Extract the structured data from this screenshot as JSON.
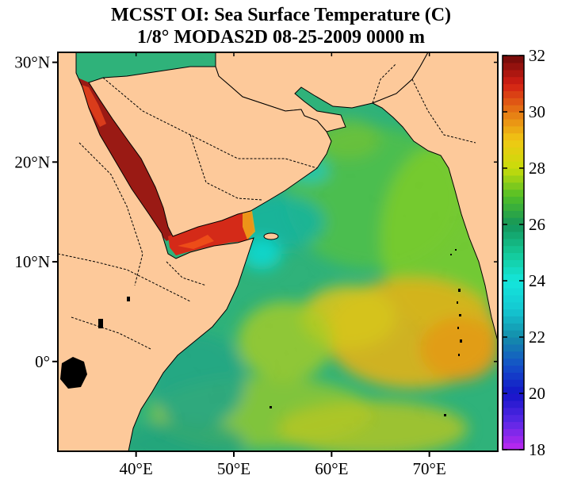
{
  "title": {
    "line1": "MCSST OI:  Sea Surface Temperature (C)",
    "line2": "1/8° MODAS2D 08-25-2009 0000 m"
  },
  "map": {
    "lat_ticks": [
      {
        "value": 30,
        "label": "30°N"
      },
      {
        "value": 20,
        "label": "20°N"
      },
      {
        "value": 10,
        "label": "10°N"
      },
      {
        "value": 0,
        "label": "0°"
      }
    ],
    "lon_ticks": [
      {
        "value": 40,
        "label": "40°E"
      },
      {
        "value": 50,
        "label": "50°E"
      },
      {
        "value": 60,
        "label": "60°E"
      },
      {
        "value": 70,
        "label": "70°E"
      }
    ],
    "lon_range": [
      32,
      77
    ],
    "lat_range": [
      -9,
      31
    ],
    "colors": {
      "land": "#fdc99a",
      "ocean_base": "#3cb878"
    }
  },
  "colorbar": {
    "min": 18,
    "max": 32,
    "ticks": [
      {
        "value": 32,
        "label": "32"
      },
      {
        "value": 30,
        "label": "30"
      },
      {
        "value": 28,
        "label": "28"
      },
      {
        "value": 26,
        "label": "26"
      },
      {
        "value": 24,
        "label": "24"
      },
      {
        "value": 22,
        "label": "22"
      },
      {
        "value": 20,
        "label": "20"
      },
      {
        "value": 18,
        "label": "18"
      }
    ]
  }
}
